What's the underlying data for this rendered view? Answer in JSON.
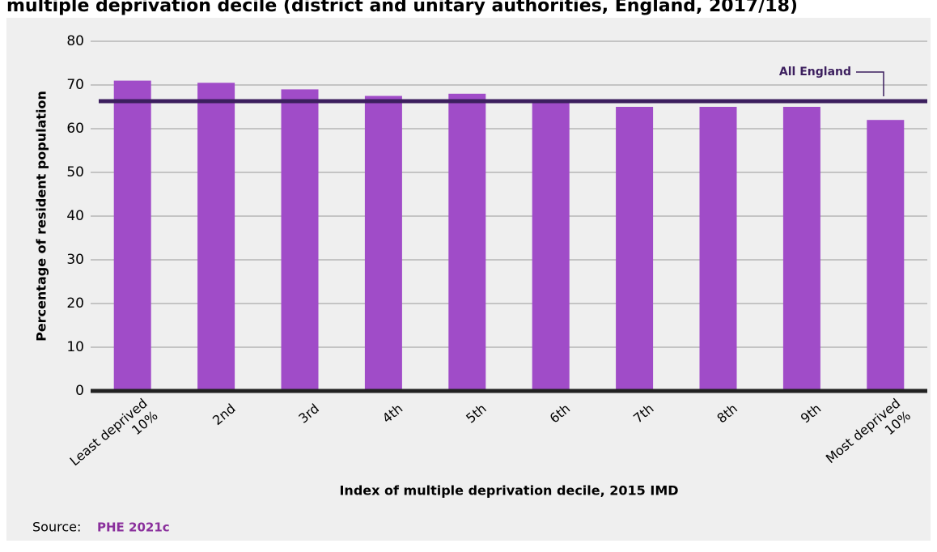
{
  "chart_data": {
    "type": "bar",
    "title": "multiple deprivation decile (district and unitary authorities, England, 2017/18)",
    "x_label": "Index of multiple deprivation decile, 2015 IMD",
    "y_label": "Percentage of resident population",
    "categories": [
      "Least deprived\n10%",
      "2nd",
      "3rd",
      "4th",
      "5th",
      "6th",
      "7th",
      "8th",
      "9th",
      "Most deprived\n10%"
    ],
    "values": [
      71,
      70.5,
      69,
      67.5,
      68,
      66,
      65,
      65,
      65,
      62
    ],
    "color": "#a04cc8",
    "reference_line": {
      "value": 66.3,
      "label": "All England",
      "color": "#3c1f5e"
    },
    "ylim": [
      0,
      80
    ],
    "yticks": [
      0,
      10,
      20,
      30,
      40,
      50,
      60,
      70,
      80
    ],
    "grid": true,
    "source_label": "Source:",
    "source": "PHE 2021c"
  }
}
